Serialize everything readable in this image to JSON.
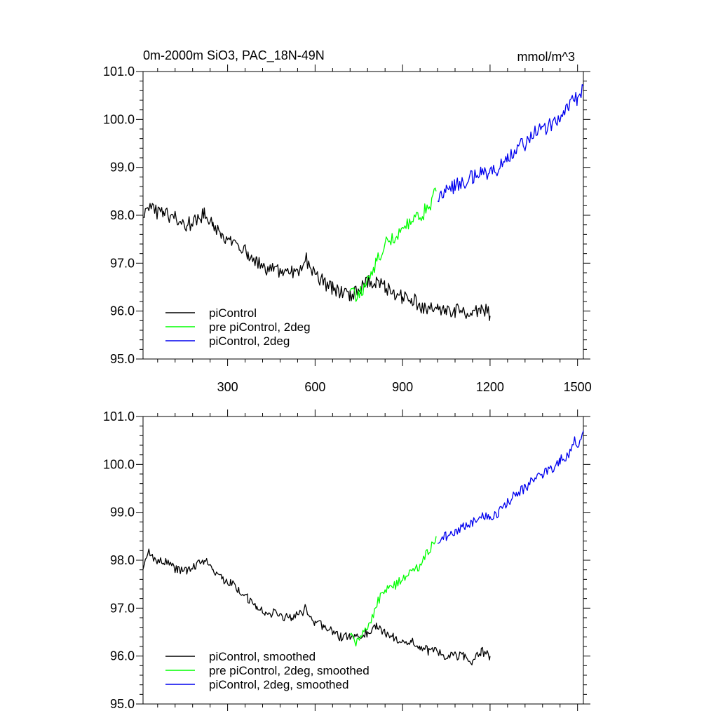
{
  "chart_data": [
    {
      "type": "line",
      "title": "0m-2000m SiO3, PAC_18N-49N",
      "units": "mmol/m^3",
      "xlim": [
        10,
        1520
      ],
      "ylim": [
        95.0,
        101.0
      ],
      "x_ticks": [
        300,
        600,
        900,
        1200,
        1500
      ],
      "x_tick_labels": [
        "300",
        "600",
        "900",
        "1200",
        "1500"
      ],
      "y_ticks": [
        95,
        96,
        97,
        98,
        99,
        100,
        101
      ],
      "y_tick_labels": [
        "95.0",
        "96.0",
        "97.0",
        "98.0",
        "99.0",
        "100.0",
        "101.0"
      ],
      "grid": false,
      "legend_position": "bottom-left",
      "series": [
        {
          "name": "piControl",
          "color": "#000000",
          "x": [
            10,
            30,
            50,
            80,
            100,
            130,
            160,
            190,
            220,
            250,
            280,
            310,
            340,
            370,
            400,
            430,
            460,
            490,
            520,
            550,
            570,
            600,
            630,
            660,
            690,
            720,
            750,
            780,
            810,
            840,
            870,
            900,
            930,
            960,
            990,
            1020,
            1050,
            1080,
            1110,
            1140,
            1170,
            1200
          ],
          "y": [
            97.9,
            98.2,
            98.1,
            98.0,
            98.0,
            97.9,
            97.8,
            97.9,
            98.0,
            97.8,
            97.6,
            97.5,
            97.4,
            97.2,
            97.0,
            96.9,
            96.9,
            96.8,
            96.8,
            96.9,
            97.1,
            96.7,
            96.6,
            96.5,
            96.4,
            96.3,
            96.4,
            96.6,
            96.6,
            96.5,
            96.4,
            96.3,
            96.3,
            96.1,
            96.1,
            96.0,
            96.0,
            96.0,
            96.0,
            95.9,
            96.1,
            95.9
          ]
        },
        {
          "name": "pre piControl, 2deg",
          "color": "#00ff00",
          "x": [
            720,
            740,
            760,
            780,
            800,
            820,
            840,
            860,
            880,
            900,
            920,
            940,
            960,
            980,
            1000,
            1015
          ],
          "y": [
            96.4,
            96.3,
            96.4,
            96.6,
            96.9,
            97.1,
            97.4,
            97.5,
            97.6,
            97.7,
            97.8,
            97.9,
            98.0,
            98.1,
            98.3,
            98.5
          ]
        },
        {
          "name": "piControl, 2deg",
          "color": "#0000ee",
          "x": [
            1020,
            1050,
            1080,
            1110,
            1140,
            1170,
            1200,
            1230,
            1260,
            1290,
            1320,
            1350,
            1380,
            1410,
            1440,
            1470,
            1490,
            1500,
            1520
          ],
          "y": [
            98.4,
            98.5,
            98.6,
            98.7,
            98.8,
            98.9,
            98.9,
            99.0,
            99.2,
            99.4,
            99.5,
            99.7,
            99.8,
            99.9,
            100.1,
            100.2,
            100.5,
            100.4,
            100.7
          ]
        }
      ]
    },
    {
      "type": "line",
      "xlim": [
        10,
        1520
      ],
      "ylim": [
        95.0,
        101.0
      ],
      "x_ticks": [
        300,
        600,
        900,
        1200,
        1500
      ],
      "y_ticks": [
        95,
        96,
        97,
        98,
        99,
        100,
        101
      ],
      "y_tick_labels": [
        "95.0",
        "96.0",
        "97.0",
        "98.0",
        "99.0",
        "100.0",
        "101.0"
      ],
      "grid": false,
      "legend_position": "bottom-left",
      "series": [
        {
          "name": "piControl, smoothed",
          "color": "#000000",
          "x": [
            10,
            30,
            50,
            80,
            100,
            130,
            160,
            190,
            220,
            250,
            280,
            310,
            340,
            370,
            400,
            430,
            460,
            490,
            520,
            550,
            570,
            600,
            630,
            660,
            690,
            720,
            750,
            780,
            810,
            840,
            870,
            900,
            930,
            960,
            990,
            1020,
            1050,
            1080,
            1110,
            1140,
            1170,
            1200
          ],
          "y": [
            97.9,
            98.2,
            98.0,
            98.0,
            97.9,
            97.8,
            97.8,
            97.9,
            98.0,
            97.8,
            97.6,
            97.5,
            97.4,
            97.2,
            97.0,
            96.9,
            96.9,
            96.8,
            96.8,
            96.9,
            97.0,
            96.7,
            96.6,
            96.5,
            96.4,
            96.4,
            96.4,
            96.5,
            96.6,
            96.5,
            96.4,
            96.3,
            96.3,
            96.2,
            96.1,
            96.1,
            96.0,
            96.0,
            96.0,
            95.9,
            96.1,
            96.0
          ]
        },
        {
          "name": "pre piControl, 2deg, smoothed",
          "color": "#00ff00",
          "x": [
            720,
            740,
            760,
            780,
            800,
            820,
            840,
            860,
            880,
            900,
            920,
            940,
            960,
            980,
            1000,
            1015
          ],
          "y": [
            96.4,
            96.3,
            96.4,
            96.6,
            96.9,
            97.2,
            97.4,
            97.4,
            97.5,
            97.6,
            97.7,
            97.8,
            97.9,
            98.1,
            98.3,
            98.5
          ]
        },
        {
          "name": "piControl, 2deg, smoothed",
          "color": "#0000ee",
          "x": [
            1020,
            1050,
            1080,
            1110,
            1140,
            1170,
            1200,
            1230,
            1260,
            1290,
            1320,
            1350,
            1380,
            1410,
            1440,
            1470,
            1490,
            1500,
            1520
          ],
          "y": [
            98.4,
            98.5,
            98.6,
            98.7,
            98.8,
            98.9,
            98.9,
            99.0,
            99.2,
            99.4,
            99.5,
            99.7,
            99.8,
            99.9,
            100.1,
            100.2,
            100.5,
            100.4,
            100.7
          ]
        }
      ]
    }
  ]
}
